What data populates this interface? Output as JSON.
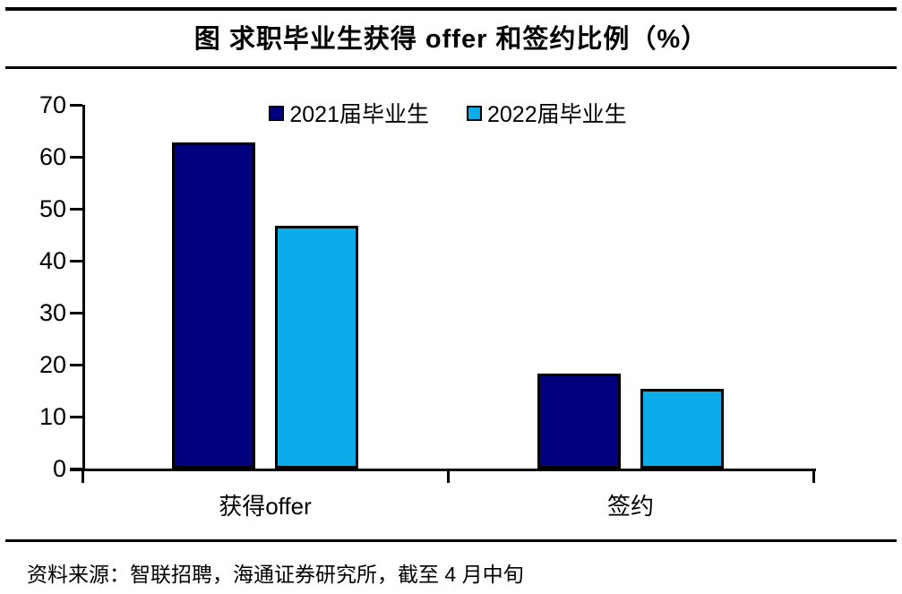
{
  "title": "图  求职毕业生获得 offer 和签约比例（%）",
  "source": "资料来源：智联招聘，海通证券研究所，截至 4 月中旬",
  "colors": {
    "series_2021": "#02027F",
    "series_2022": "#0AADEA",
    "axis": "#000000",
    "bar_border": "#000000",
    "background": "#FFFFFF",
    "text": "#000000"
  },
  "chart_data": {
    "type": "bar",
    "title": "图 求职毕业生获得 offer 和签约比例（%）",
    "categories": [
      "获得offer",
      "签约"
    ],
    "series": [
      {
        "name": "2021届毕业生",
        "color": "#02027F",
        "values": [
          62.8,
          18.3
        ]
      },
      {
        "name": "2022届毕业生",
        "color": "#0AADEA",
        "values": [
          46.7,
          15.4
        ]
      }
    ],
    "xlabel": "",
    "ylabel": "",
    "ylim": [
      0,
      70
    ],
    "yticks": [
      0,
      10,
      20,
      30,
      40,
      50,
      60,
      70
    ],
    "grid": false,
    "legend_position": "top-center"
  }
}
